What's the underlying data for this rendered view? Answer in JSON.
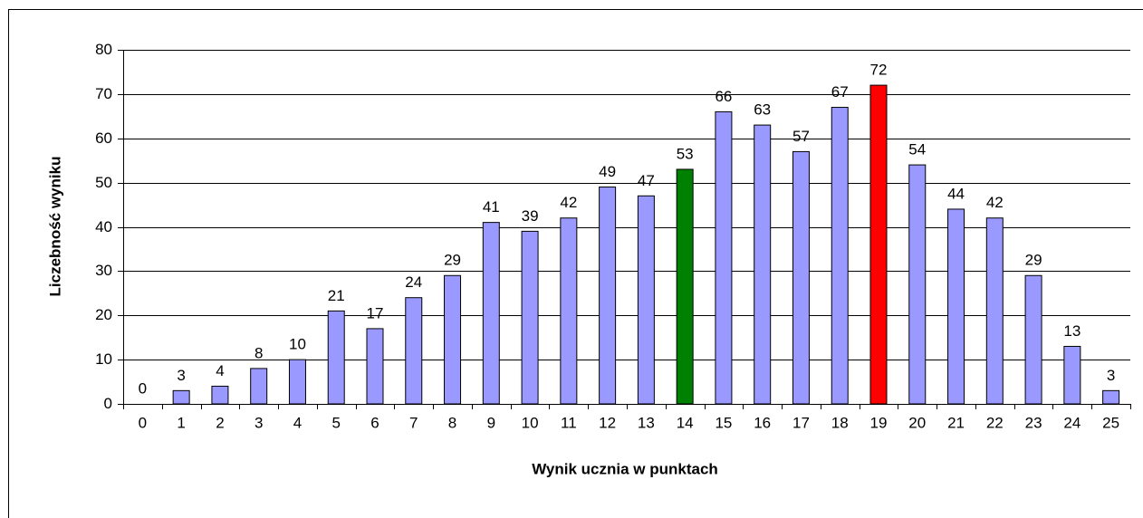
{
  "chart_data": {
    "type": "bar",
    "xlabel": "Wynik ucznia w punktach",
    "ylabel": "Liczebność wyniku",
    "categories": [
      "0",
      "1",
      "2",
      "3",
      "4",
      "5",
      "6",
      "7",
      "8",
      "9",
      "10",
      "11",
      "12",
      "13",
      "14",
      "15",
      "16",
      "17",
      "18",
      "19",
      "20",
      "21",
      "22",
      "23",
      "24",
      "25"
    ],
    "values": [
      0,
      3,
      4,
      8,
      10,
      21,
      17,
      24,
      29,
      41,
      39,
      42,
      49,
      47,
      53,
      66,
      63,
      57,
      67,
      72,
      54,
      44,
      42,
      29,
      13,
      3
    ],
    "colors": [
      "#9999ff",
      "#9999ff",
      "#9999ff",
      "#9999ff",
      "#9999ff",
      "#9999ff",
      "#9999ff",
      "#9999ff",
      "#9999ff",
      "#9999ff",
      "#9999ff",
      "#9999ff",
      "#9999ff",
      "#9999ff",
      "#008000",
      "#9999ff",
      "#9999ff",
      "#9999ff",
      "#9999ff",
      "#ff0000",
      "#9999ff",
      "#9999ff",
      "#9999ff",
      "#9999ff",
      "#9999ff",
      "#9999ff"
    ],
    "ylim": [
      0,
      80
    ],
    "yticks": [
      0,
      10,
      20,
      30,
      40,
      50,
      60,
      70,
      80
    ],
    "grid": true
  }
}
